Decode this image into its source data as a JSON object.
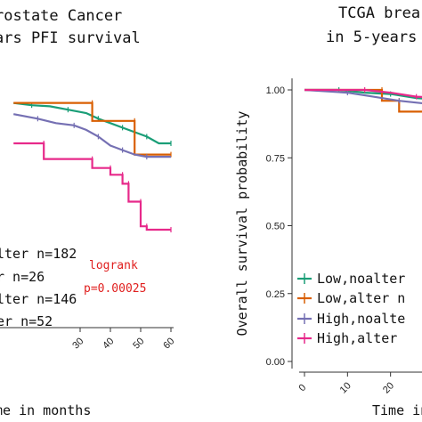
{
  "chart_data": [
    {
      "type": "line",
      "title_lines": [
        "rostate Cancer",
        "ars PFI survival"
      ],
      "xlabel": "me in months",
      "ylabel": "",
      "xlim": [
        0,
        60
      ],
      "ylim": [
        0.0,
        1.0
      ],
      "x_ticks": [
        "30",
        "40",
        "50",
        "60"
      ],
      "y_ticks": [],
      "legend_position": "bottom-left",
      "legend": [
        "lter n=182",
        "r n=26",
        "lter n=146",
        "er n=52"
      ],
      "annotation": {
        "line1": "logrank",
        "line2": "p=0.00025"
      },
      "series": [
        {
          "color": "#1a9e77",
          "points": [
            [
              8,
              0.93
            ],
            [
              14,
              0.92
            ],
            [
              20,
              0.915
            ],
            [
              26,
              0.9
            ],
            [
              32,
              0.885
            ],
            [
              36,
              0.86
            ],
            [
              40,
              0.84
            ],
            [
              44,
              0.82
            ],
            [
              48,
              0.8
            ],
            [
              52,
              0.78
            ],
            [
              56,
              0.75
            ],
            [
              60,
              0.75
            ]
          ]
        },
        {
          "color": "#d95f02",
          "points": [
            [
              8,
              0.93
            ],
            [
              34,
              0.93
            ],
            [
              34,
              0.85
            ],
            [
              48,
              0.85
            ],
            [
              48,
              0.7
            ],
            [
              60,
              0.7
            ]
          ]
        },
        {
          "color": "#7570b3",
          "points": [
            [
              8,
              0.88
            ],
            [
              16,
              0.86
            ],
            [
              22,
              0.84
            ],
            [
              28,
              0.83
            ],
            [
              32,
              0.81
            ],
            [
              36,
              0.78
            ],
            [
              40,
              0.74
            ],
            [
              44,
              0.72
            ],
            [
              48,
              0.7
            ],
            [
              52,
              0.69
            ],
            [
              60,
              0.69
            ]
          ]
        },
        {
          "color": "#e7298a",
          "points": [
            [
              8,
              0.75
            ],
            [
              18,
              0.75
            ],
            [
              18,
              0.68
            ],
            [
              34,
              0.68
            ],
            [
              34,
              0.64
            ],
            [
              40,
              0.64
            ],
            [
              40,
              0.61
            ],
            [
              44,
              0.61
            ],
            [
              44,
              0.57
            ],
            [
              46,
              0.57
            ],
            [
              46,
              0.49
            ],
            [
              50,
              0.49
            ],
            [
              50,
              0.38
            ],
            [
              52,
              0.38
            ],
            [
              52,
              0.365
            ],
            [
              60,
              0.365
            ]
          ]
        }
      ]
    },
    {
      "type": "line",
      "title_lines": [
        "TCGA brea",
        "in 5-years"
      ],
      "xlabel": "Time in",
      "ylabel": "Overall survival probability",
      "xlim": [
        0,
        60
      ],
      "ylim": [
        0.0,
        1.0
      ],
      "x_ticks": [
        "0",
        "10",
        "20"
      ],
      "y_ticks": [
        "0.00",
        "0.25",
        "0.50",
        "0.75",
        "1.00"
      ],
      "legend_position": "bottom-left",
      "legend": [
        "Low,noalter",
        "Low,alter n",
        "High,noalte",
        "High,alter"
      ],
      "series": [
        {
          "color": "#1a9e77",
          "points": [
            [
              0,
              1.0
            ],
            [
              8,
              1.0
            ],
            [
              14,
              0.99
            ],
            [
              20,
              0.985
            ],
            [
              26,
              0.97
            ],
            [
              34,
              0.96
            ]
          ]
        },
        {
          "color": "#d95f02",
          "points": [
            [
              0,
              1.0
            ],
            [
              18,
              1.0
            ],
            [
              18,
              0.96
            ],
            [
              22,
              0.96
            ],
            [
              22,
              0.92
            ],
            [
              34,
              0.92
            ]
          ]
        },
        {
          "color": "#7570b3",
          "points": [
            [
              0,
              1.0
            ],
            [
              10,
              0.99
            ],
            [
              16,
              0.975
            ],
            [
              22,
              0.96
            ],
            [
              28,
              0.95
            ],
            [
              34,
              0.94
            ]
          ]
        },
        {
          "color": "#e7298a",
          "points": [
            [
              0,
              1.0
            ],
            [
              14,
              1.0
            ],
            [
              20,
              0.99
            ],
            [
              26,
              0.975
            ],
            [
              34,
              0.97
            ]
          ]
        }
      ]
    }
  ]
}
